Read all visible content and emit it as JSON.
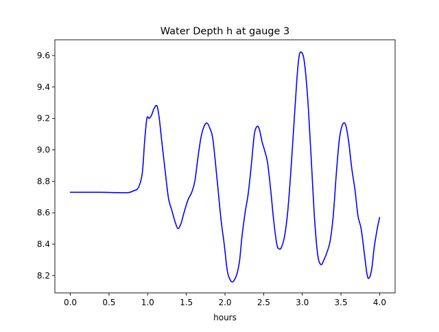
{
  "chart_data": {
    "type": "line",
    "title": "Water Depth h at gauge 3",
    "xlabel": "hours",
    "ylabel": "",
    "xlim": [
      -0.2,
      4.2
    ],
    "ylim": [
      8.09,
      9.7
    ],
    "xticks": [
      0.0,
      0.5,
      1.0,
      1.5,
      2.0,
      2.5,
      3.0,
      3.5,
      4.0
    ],
    "xtick_labels": [
      "0.0",
      "0.5",
      "1.0",
      "1.5",
      "2.0",
      "2.5",
      "3.0",
      "3.5",
      "4.0"
    ],
    "yticks": [
      8.2,
      8.4,
      8.6,
      8.8,
      9.0,
      9.2,
      9.4,
      9.6
    ],
    "ytick_labels": [
      "8.2",
      "8.4",
      "8.6",
      "8.8",
      "9.0",
      "9.2",
      "9.4",
      "9.6"
    ],
    "grid": false,
    "series": [
      {
        "color": "#0000ff",
        "x": [
          0.0,
          0.2,
          0.4,
          0.6,
          0.75,
          0.82,
          0.88,
          0.93,
          0.96,
          0.99,
          1.02,
          1.05,
          1.08,
          1.12,
          1.15,
          1.19,
          1.23,
          1.27,
          1.31,
          1.35,
          1.39,
          1.43,
          1.47,
          1.52,
          1.57,
          1.61,
          1.65,
          1.69,
          1.73,
          1.77,
          1.81,
          1.84,
          1.87,
          1.91,
          1.95,
          1.99,
          2.03,
          2.07,
          2.1,
          2.13,
          2.16,
          2.19,
          2.22,
          2.26,
          2.3,
          2.34,
          2.38,
          2.42,
          2.45,
          2.48,
          2.51,
          2.55,
          2.59,
          2.63,
          2.67,
          2.7,
          2.73,
          2.77,
          2.81,
          2.85,
          2.89,
          2.93,
          2.96,
          2.99,
          3.02,
          3.05,
          3.08,
          3.12,
          3.16,
          3.2,
          3.24,
          3.28,
          3.32,
          3.36,
          3.4,
          3.44,
          3.48,
          3.52,
          3.56,
          3.6,
          3.64,
          3.68,
          3.72,
          3.76,
          3.8,
          3.84,
          3.87,
          3.9,
          3.93,
          3.97,
          4.0
        ],
        "y": [
          8.73,
          8.73,
          8.73,
          8.728,
          8.728,
          8.74,
          8.76,
          8.85,
          9.05,
          9.2,
          9.2,
          9.22,
          9.26,
          9.28,
          9.2,
          9.02,
          8.85,
          8.69,
          8.62,
          8.55,
          8.5,
          8.53,
          8.6,
          8.68,
          8.73,
          8.8,
          8.95,
          9.08,
          9.15,
          9.17,
          9.13,
          9.08,
          8.95,
          8.75,
          8.55,
          8.4,
          8.23,
          8.17,
          8.16,
          8.18,
          8.22,
          8.3,
          8.45,
          8.6,
          8.72,
          8.9,
          9.1,
          9.15,
          9.12,
          9.05,
          9.0,
          8.92,
          8.75,
          8.55,
          8.4,
          8.37,
          8.38,
          8.45,
          8.6,
          8.85,
          9.15,
          9.45,
          9.6,
          9.62,
          9.58,
          9.45,
          9.25,
          8.9,
          8.55,
          8.33,
          8.27,
          8.3,
          8.35,
          8.42,
          8.58,
          8.85,
          9.07,
          9.16,
          9.16,
          9.05,
          8.88,
          8.75,
          8.58,
          8.5,
          8.35,
          8.2,
          8.19,
          8.25,
          8.38,
          8.5,
          8.57
        ]
      }
    ]
  }
}
